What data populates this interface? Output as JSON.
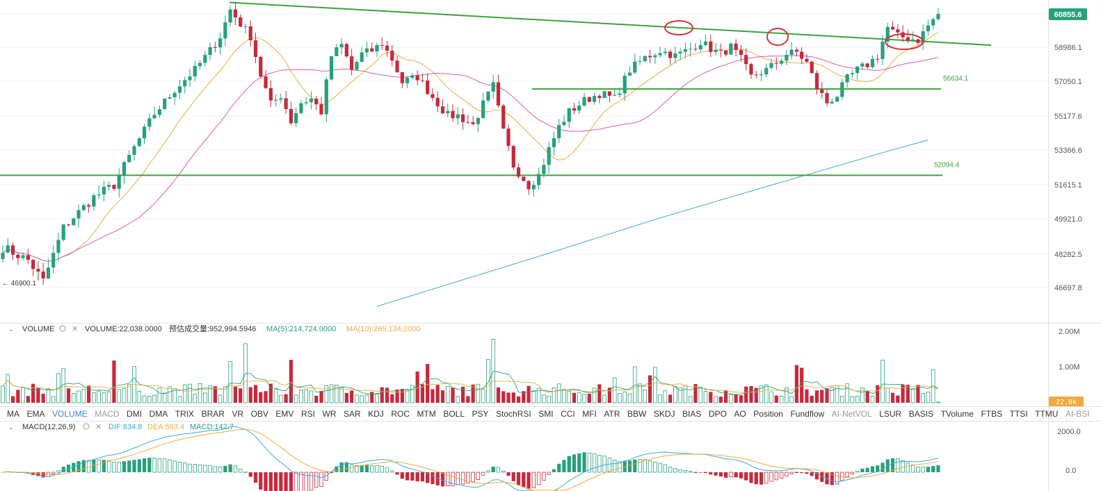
{
  "colors": {
    "up": "#26a17b",
    "down": "#c8283c",
    "ma_short": "#f0a93c",
    "ma_mid": "#d75ab4",
    "ma_long": "#3aa9d8",
    "trendline": "#3da03a",
    "annotation": "#d9323a",
    "grid": "#f0f0f0",
    "axis_text": "#555555",
    "last_price_bg": "#26a17b",
    "vol_badge_bg": "#f0a93c",
    "dif": "#3aa9d8",
    "dea": "#f0a93c",
    "macd_label": "#26a17b"
  },
  "chart_data": {
    "type": "candlestick",
    "price_axis": {
      "ticks": [
        "60855.6",
        "58986.1",
        "57050.1",
        "55177.6",
        "53366.6",
        "51615.1",
        "49921.0",
        "48282.5",
        "46697.8"
      ],
      "tick_values": [
        60855.6,
        58986.1,
        57050.1,
        55177.6,
        53366.6,
        51615.1,
        49921.0,
        48282.5,
        46697.8
      ],
      "last_price": "60855.6",
      "range": [
        45500,
        61500
      ]
    },
    "levels": [
      {
        "label": "56634.1",
        "value": 56634.1
      },
      {
        "label": "52094.4",
        "value": 52094.4
      }
    ],
    "low_marker": "← 46900.1",
    "volume_panel": {
      "name": "VOLUME",
      "value_text": "VOLUME:22,038.0000",
      "estimate_text": "预估成交量:952,994.5946",
      "ma5_text": "MA(5):214,724.0000",
      "ma10_text": "MA(10):265,134.2000",
      "ticks": [
        "2.00M",
        "1.00M"
      ],
      "tick_values": [
        2000000,
        1000000
      ],
      "badge": "22.0k"
    },
    "indicator_tabs": [
      "MA",
      "EMA",
      "VOLUME",
      "MACD",
      "DMI",
      "DMA",
      "TRIX",
      "BRAR",
      "VR",
      "OBV",
      "EMV",
      "RSI",
      "WR",
      "SAR",
      "KDJ",
      "ROC",
      "MTM",
      "BOLL",
      "PSY",
      "StochRSI",
      "SMI",
      "CCI",
      "MFI",
      "ATR",
      "BBW",
      "SKDJ",
      "BIAS",
      "DPO",
      "AO",
      "Position",
      "Fundflow",
      "AI-NetVOL",
      "LSUR",
      "BASIS",
      "TVolume",
      "FTBS",
      "TTSI",
      "TTMU",
      "AI-BSI"
    ],
    "active_tabs": [
      "VOLUME"
    ],
    "muted_tabs": [
      "MACD",
      "AI-NetVOL",
      "AI-BSI"
    ],
    "macd_panel": {
      "name": "MACD(12,26,9)",
      "dif_text": "DIF:634.8",
      "dea_text": "DEA:563.4",
      "macd_text": "MACD:142.7",
      "ticks": [
        "2000.0",
        "0.0"
      ],
      "tick_values": [
        2000,
        0
      ]
    },
    "anchors": [
      [
        0,
        48600
      ],
      [
        5,
        48000
      ],
      [
        8,
        47000
      ],
      [
        12,
        49500
      ],
      [
        18,
        51000
      ],
      [
        22,
        51600
      ],
      [
        26,
        53500
      ],
      [
        30,
        55300
      ],
      [
        34,
        56600
      ],
      [
        38,
        57700
      ],
      [
        41,
        58800
      ],
      [
        43,
        59600
      ],
      [
        45,
        61100
      ],
      [
        47,
        60300
      ],
      [
        49,
        59600
      ],
      [
        51,
        57400
      ],
      [
        53,
        55800
      ],
      [
        55,
        56300
      ],
      [
        57,
        54900
      ],
      [
        59,
        55900
      ],
      [
        61,
        56100
      ],
      [
        63,
        55400
      ],
      [
        65,
        58500
      ],
      [
        67,
        59100
      ],
      [
        69,
        57700
      ],
      [
        71,
        58600
      ],
      [
        73,
        58800
      ],
      [
        75,
        59200
      ],
      [
        77,
        58300
      ],
      [
        79,
        57000
      ],
      [
        82,
        57300
      ],
      [
        85,
        56200
      ],
      [
        88,
        55200
      ],
      [
        90,
        55200
      ],
      [
        93,
        54700
      ],
      [
        95,
        55800
      ],
      [
        97,
        56800
      ],
      [
        99,
        54300
      ],
      [
        101,
        52600
      ],
      [
        104,
        51600
      ],
      [
        106,
        52100
      ],
      [
        108,
        53400
      ],
      [
        110,
        54600
      ],
      [
        112,
        55400
      ],
      [
        115,
        56000
      ],
      [
        118,
        56400
      ],
      [
        121,
        56100
      ],
      [
        124,
        57700
      ],
      [
        127,
        58400
      ],
      [
        130,
        58800
      ],
      [
        133,
        58500
      ],
      [
        136,
        58900
      ],
      [
        138,
        59300
      ],
      [
        140,
        58900
      ],
      [
        142,
        58600
      ],
      [
        144,
        59000
      ],
      [
        146,
        58300
      ],
      [
        148,
        57300
      ],
      [
        151,
        57700
      ],
      [
        153,
        58100
      ],
      [
        155,
        58600
      ],
      [
        157,
        58700
      ],
      [
        159,
        58100
      ],
      [
        161,
        56700
      ],
      [
        163,
        55900
      ],
      [
        165,
        56300
      ],
      [
        167,
        57200
      ],
      [
        169,
        57700
      ],
      [
        171,
        58000
      ],
      [
        173,
        58500
      ],
      [
        175,
        60100
      ],
      [
        177,
        59600
      ],
      [
        179,
        59500
      ],
      [
        181,
        59400
      ],
      [
        183,
        60200
      ],
      [
        185,
        60855.6
      ]
    ]
  }
}
